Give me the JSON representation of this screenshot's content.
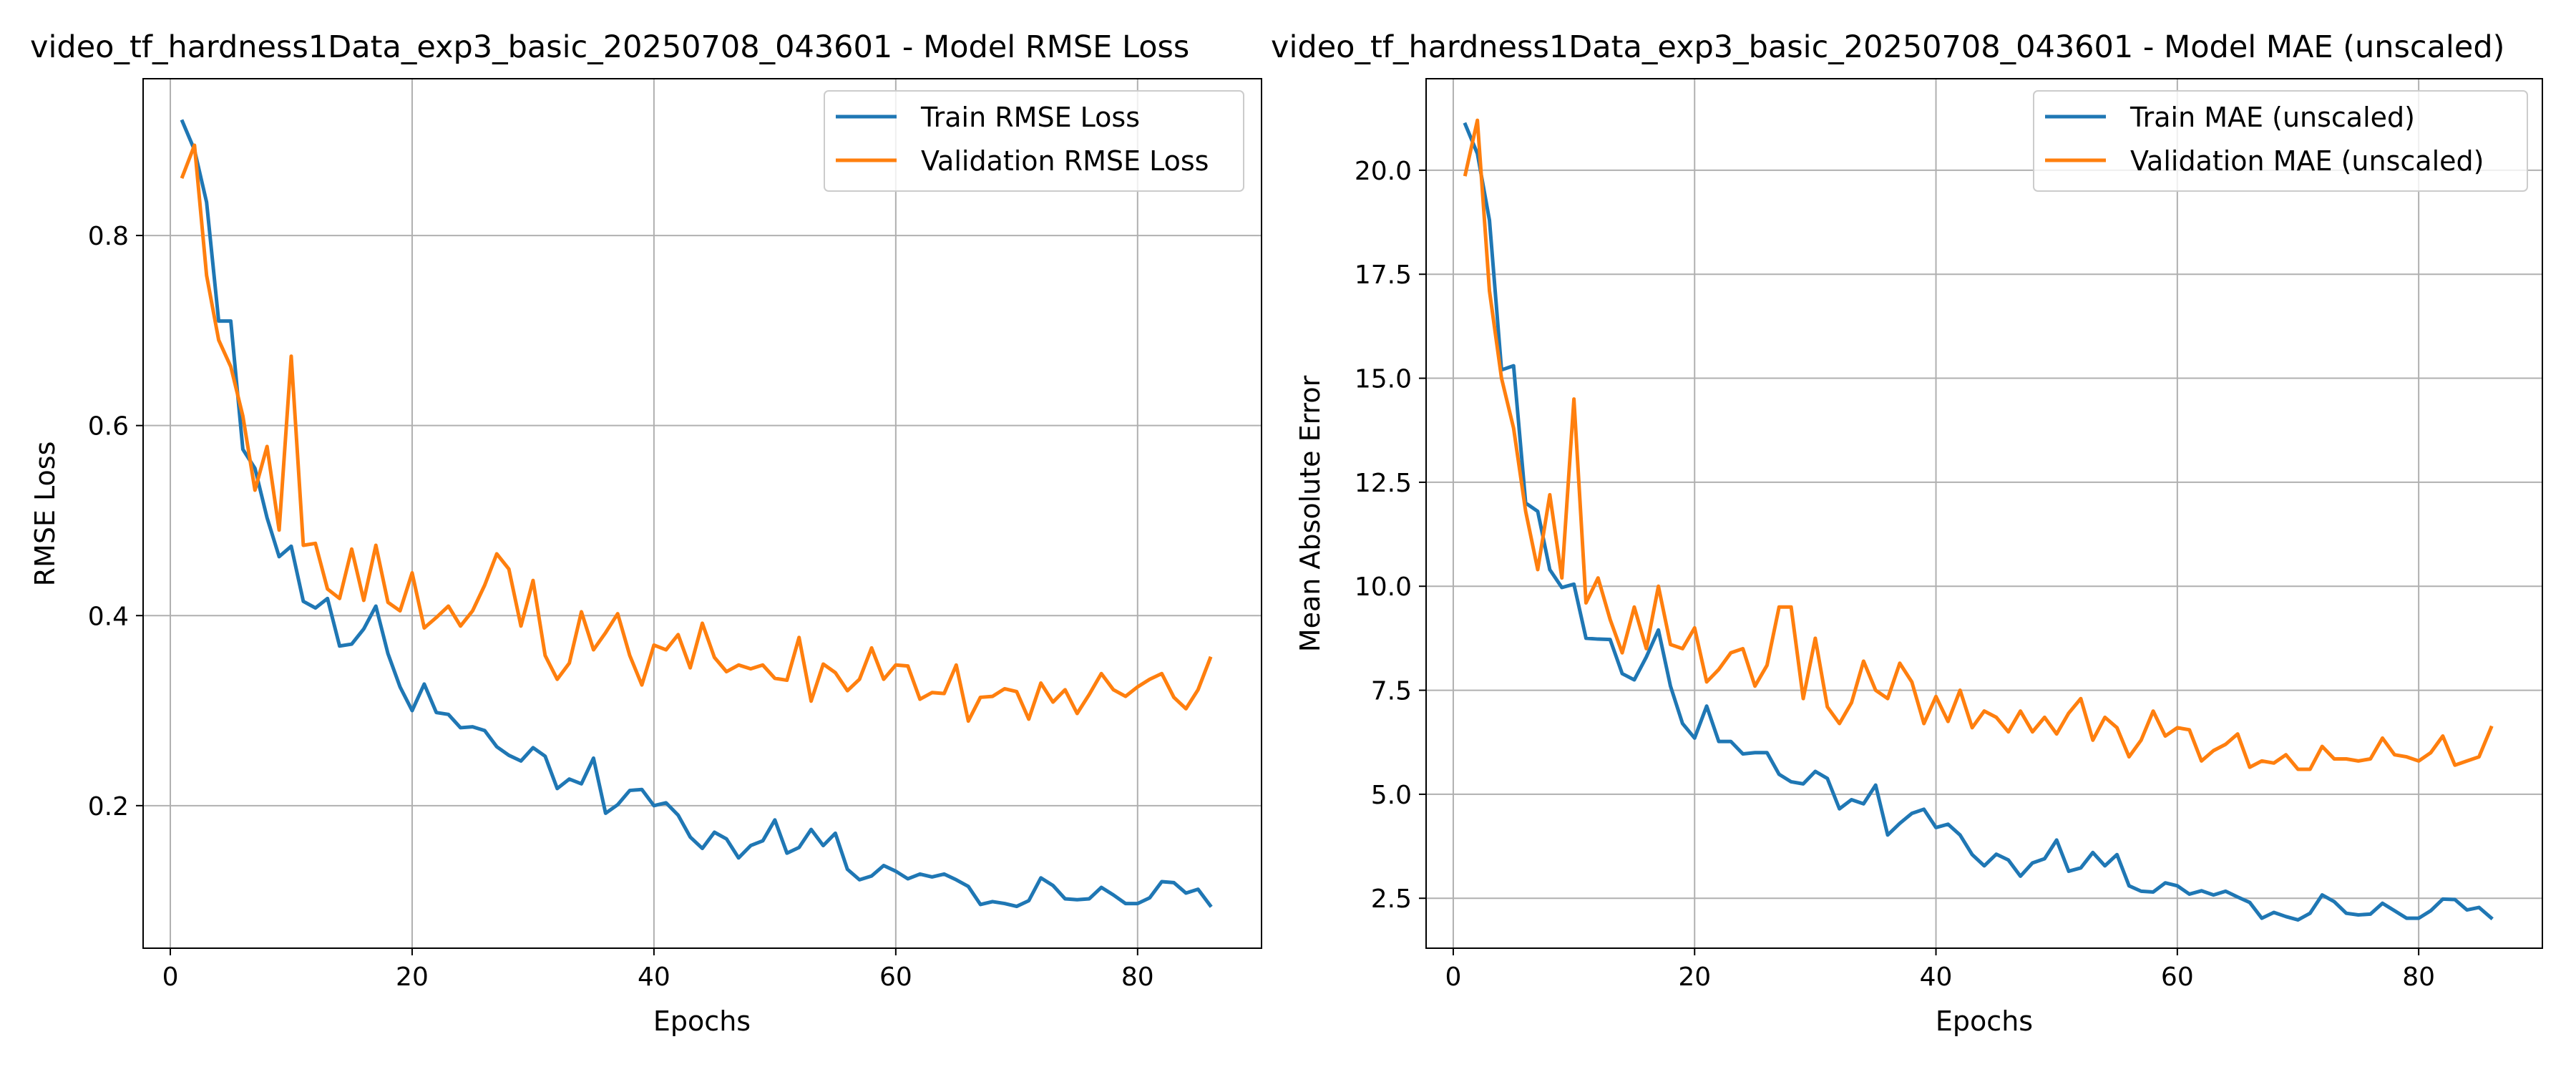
{
  "colors": {
    "train": "#1f77b4",
    "validation": "#ff7f0e",
    "grid": "#b0b0b0",
    "axis": "#000000",
    "background": "#ffffff"
  },
  "chart_data": [
    {
      "type": "line",
      "title": "video_tf_hardness1Data_exp3_basic_20250708_043601 - Model RMSE Loss",
      "xlabel": "Epochs",
      "ylabel": "RMSE Loss",
      "xlim": [
        -2.25,
        90.25
      ],
      "ylim": [
        0.05,
        0.965
      ],
      "xticks": [
        0,
        20,
        40,
        60,
        80
      ],
      "xtick_labels": [
        "0",
        "20",
        "40",
        "60",
        "80"
      ],
      "yticks": [
        0.2,
        0.4,
        0.6,
        0.8
      ],
      "ytick_labels": [
        "0.2",
        "0.4",
        "0.6",
        "0.8"
      ],
      "grid": true,
      "legend_position": "top-right",
      "x": [
        1,
        2,
        3,
        4,
        5,
        6,
        7,
        8,
        9,
        10,
        11,
        12,
        13,
        14,
        15,
        16,
        17,
        18,
        19,
        20,
        21,
        22,
        23,
        24,
        25,
        26,
        27,
        28,
        29,
        30,
        31,
        32,
        33,
        34,
        35,
        36,
        37,
        38,
        39,
        40,
        41,
        42,
        43,
        44,
        45,
        46,
        47,
        48,
        49,
        50,
        51,
        52,
        53,
        54,
        55,
        56,
        57,
        58,
        59,
        60,
        61,
        62,
        63,
        64,
        65,
        66,
        67,
        68,
        69,
        70,
        71,
        72,
        73,
        74,
        75,
        76,
        77,
        78,
        79,
        80,
        81,
        82,
        83,
        84,
        85,
        86
      ],
      "series": [
        {
          "name": "Train RMSE Loss",
          "color_key": "train",
          "values": [
            0.92,
            0.89,
            0.835,
            0.71,
            0.71,
            0.575,
            0.555,
            0.503,
            0.462,
            0.473,
            0.415,
            0.408,
            0.418,
            0.368,
            0.37,
            0.386,
            0.41,
            0.36,
            0.325,
            0.3,
            0.328,
            0.298,
            0.296,
            0.282,
            0.283,
            0.279,
            0.262,
            0.253,
            0.247,
            0.261,
            0.252,
            0.218,
            0.228,
            0.223,
            0.25,
            0.192,
            0.201,
            0.216,
            0.217,
            0.2,
            0.203,
            0.19,
            0.167,
            0.155,
            0.172,
            0.165,
            0.145,
            0.158,
            0.163,
            0.185,
            0.15,
            0.156,
            0.175,
            0.158,
            0.171,
            0.133,
            0.122,
            0.126,
            0.137,
            0.131,
            0.123,
            0.128,
            0.125,
            0.128,
            0.122,
            0.115,
            0.096,
            0.099,
            0.097,
            0.094,
            0.1,
            0.124,
            0.116,
            0.102,
            0.101,
            0.102,
            0.114,
            0.106,
            0.097,
            0.097,
            0.103,
            0.12,
            0.119,
            0.108,
            0.112,
            0.095
          ]
        },
        {
          "name": "Validation RMSE Loss",
          "color_key": "validation",
          "values": [
            0.862,
            0.895,
            0.758,
            0.69,
            0.662,
            0.61,
            0.532,
            0.578,
            0.49,
            0.673,
            0.474,
            0.476,
            0.428,
            0.418,
            0.47,
            0.416,
            0.474,
            0.414,
            0.405,
            0.445,
            0.387,
            0.398,
            0.41,
            0.389,
            0.405,
            0.432,
            0.465,
            0.449,
            0.389,
            0.437,
            0.358,
            0.333,
            0.35,
            0.404,
            0.364,
            0.382,
            0.402,
            0.358,
            0.327,
            0.369,
            0.364,
            0.38,
            0.345,
            0.392,
            0.356,
            0.341,
            0.348,
            0.344,
            0.348,
            0.334,
            0.332,
            0.377,
            0.31,
            0.349,
            0.34,
            0.321,
            0.333,
            0.366,
            0.333,
            0.348,
            0.347,
            0.312,
            0.319,
            0.318,
            0.348,
            0.289,
            0.314,
            0.315,
            0.323,
            0.32,
            0.291,
            0.329,
            0.309,
            0.322,
            0.297,
            0.317,
            0.339,
            0.322,
            0.315,
            0.325,
            0.333,
            0.339,
            0.314,
            0.302,
            0.322,
            0.355
          ]
        }
      ]
    },
    {
      "type": "line",
      "title": "video_tf_hardness1Data_exp3_basic_20250708_043601 - Model MAE (unscaled)",
      "xlabel": "Epochs",
      "ylabel": "Mean Absolute Error",
      "xlim": [
        -2.25,
        90.25
      ],
      "ylim": [
        1.3,
        22.2
      ],
      "xticks": [
        0,
        20,
        40,
        60,
        80
      ],
      "xtick_labels": [
        "0",
        "20",
        "40",
        "60",
        "80"
      ],
      "yticks": [
        2.5,
        5.0,
        7.5,
        10.0,
        12.5,
        15.0,
        17.5,
        20.0
      ],
      "ytick_labels": [
        "2.5",
        "5.0",
        "7.5",
        "10.0",
        "12.5",
        "15.0",
        "17.5",
        "20.0"
      ],
      "grid": true,
      "legend_position": "top-right",
      "x": [
        1,
        2,
        3,
        4,
        5,
        6,
        7,
        8,
        9,
        10,
        11,
        12,
        13,
        14,
        15,
        16,
        17,
        18,
        19,
        20,
        21,
        22,
        23,
        24,
        25,
        26,
        27,
        28,
        29,
        30,
        31,
        32,
        33,
        34,
        35,
        36,
        37,
        38,
        39,
        40,
        41,
        42,
        43,
        44,
        45,
        46,
        47,
        48,
        49,
        50,
        51,
        52,
        53,
        54,
        55,
        56,
        57,
        58,
        59,
        60,
        61,
        62,
        63,
        64,
        65,
        66,
        67,
        68,
        69,
        70,
        71,
        72,
        73,
        74,
        75,
        76,
        77,
        78,
        79,
        80,
        81,
        82,
        83,
        84,
        85,
        86
      ],
      "series": [
        {
          "name": "Train MAE (unscaled)",
          "color_key": "train",
          "values": [
            21.1,
            20.4,
            18.8,
            15.2,
            15.3,
            12.0,
            11.8,
            10.4,
            9.97,
            10.05,
            8.75,
            8.73,
            8.72,
            7.9,
            7.75,
            8.3,
            8.95,
            7.6,
            6.7,
            6.35,
            7.12,
            6.27,
            6.27,
            5.97,
            6.0,
            6.0,
            5.48,
            5.3,
            5.25,
            5.55,
            5.38,
            4.65,
            4.87,
            4.77,
            5.22,
            4.02,
            4.3,
            4.54,
            4.64,
            4.2,
            4.28,
            4.02,
            3.55,
            3.28,
            3.56,
            3.42,
            3.03,
            3.35,
            3.45,
            3.9,
            3.15,
            3.23,
            3.6,
            3.28,
            3.55,
            2.8,
            2.67,
            2.65,
            2.87,
            2.8,
            2.6,
            2.68,
            2.58,
            2.67,
            2.53,
            2.4,
            2.02,
            2.16,
            2.06,
            1.98,
            2.14,
            2.58,
            2.42,
            2.14,
            2.1,
            2.12,
            2.38,
            2.2,
            2.02,
            2.02,
            2.2,
            2.48,
            2.47,
            2.22,
            2.28,
            2.03
          ]
        },
        {
          "name": "Validation MAE (unscaled)",
          "color_key": "validation",
          "values": [
            19.9,
            21.2,
            17.1,
            15.0,
            13.8,
            11.8,
            10.4,
            12.2,
            10.2,
            14.5,
            9.6,
            10.2,
            9.2,
            8.4,
            9.5,
            8.5,
            10.0,
            8.6,
            8.5,
            9.0,
            7.7,
            8.0,
            8.4,
            8.5,
            7.6,
            8.1,
            9.5,
            9.5,
            7.3,
            8.75,
            7.1,
            6.7,
            7.2,
            8.2,
            7.5,
            7.3,
            8.15,
            7.7,
            6.7,
            7.35,
            6.75,
            7.5,
            6.6,
            7.0,
            6.85,
            6.5,
            7.0,
            6.5,
            6.85,
            6.45,
            6.95,
            7.3,
            6.3,
            6.85,
            6.6,
            5.9,
            6.3,
            7.0,
            6.4,
            6.6,
            6.55,
            5.8,
            6.05,
            6.2,
            6.45,
            5.65,
            5.8,
            5.75,
            5.95,
            5.6,
            5.6,
            6.15,
            5.85,
            5.85,
            5.8,
            5.85,
            6.35,
            5.95,
            5.9,
            5.8,
            6.0,
            6.4,
            5.7,
            5.8,
            5.9,
            6.6
          ]
        }
      ]
    }
  ]
}
